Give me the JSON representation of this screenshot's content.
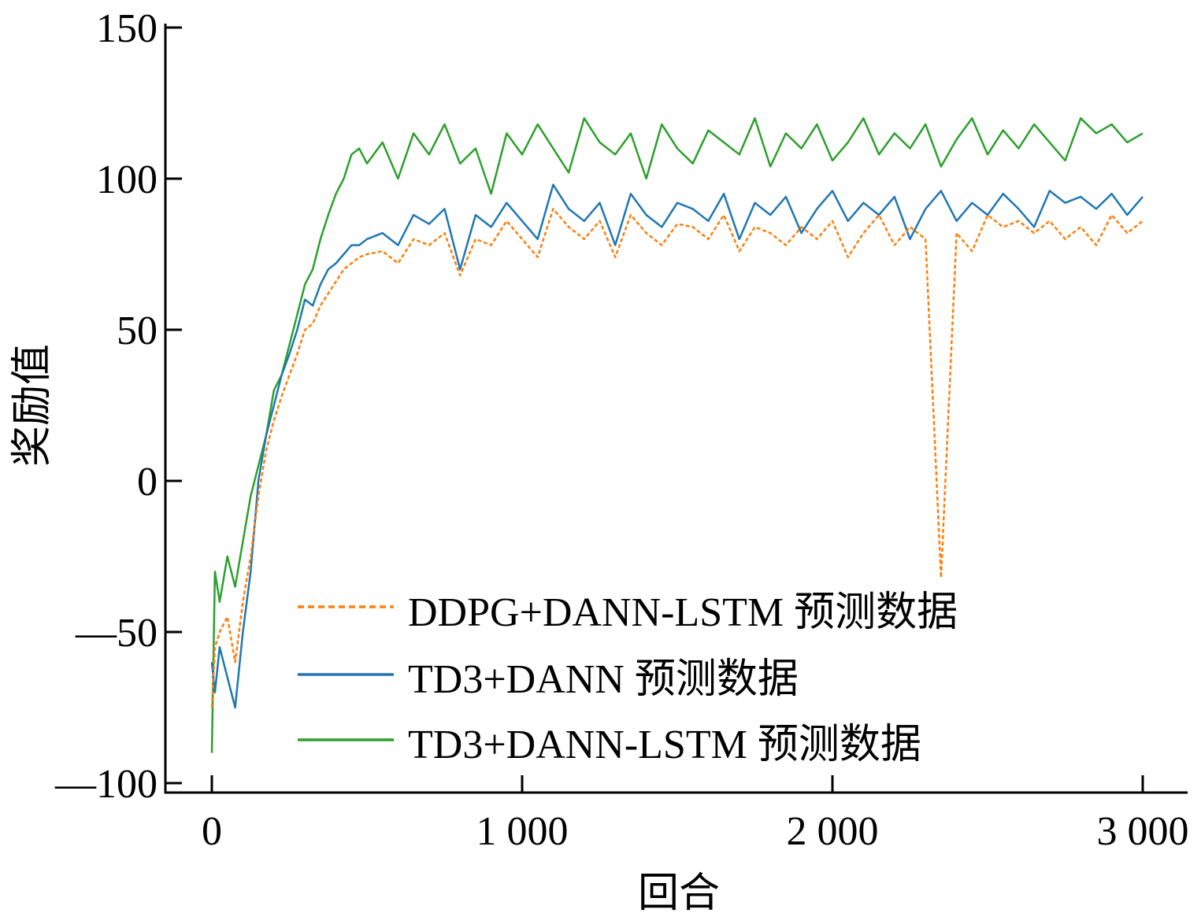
{
  "chart_data": {
    "type": "line",
    "title": "",
    "xlabel": "回合",
    "ylabel": "奖励值",
    "xlim": [
      -150,
      3150
    ],
    "ylim": [
      -100,
      150
    ],
    "xticks": [
      0,
      1000,
      2000,
      3000
    ],
    "xtick_labels": [
      "0",
      "1 000",
      "2 000",
      "3 000"
    ],
    "yticks": [
      -100,
      -50,
      0,
      50,
      100,
      150
    ],
    "ytick_labels": [
      "—100",
      "—50",
      "0",
      "50",
      "100",
      "150"
    ],
    "grid": false,
    "legend_position": "lower-center",
    "x": [
      0,
      10,
      25,
      50,
      75,
      100,
      125,
      150,
      175,
      200,
      225,
      250,
      275,
      300,
      325,
      350,
      375,
      400,
      425,
      450,
      475,
      500,
      550,
      600,
      650,
      700,
      750,
      800,
      850,
      900,
      950,
      1000,
      1050,
      1100,
      1150,
      1200,
      1250,
      1300,
      1350,
      1400,
      1450,
      1500,
      1550,
      1600,
      1650,
      1700,
      1750,
      1800,
      1850,
      1900,
      1950,
      2000,
      2050,
      2100,
      2150,
      2200,
      2250,
      2300,
      2350,
      2400,
      2450,
      2500,
      2550,
      2600,
      2650,
      2700,
      2750,
      2800,
      2850,
      2900,
      2950,
      3000
    ],
    "series": [
      {
        "name": "DDPG+DANN-LSTM 预测数据",
        "color": "#ff7f0e",
        "style": "dashed",
        "values": [
          -75,
          -55,
          -50,
          -45,
          -60,
          -40,
          -25,
          -5,
          10,
          20,
          28,
          35,
          42,
          50,
          52,
          58,
          62,
          66,
          70,
          72,
          74,
          75,
          76,
          72,
          80,
          78,
          82,
          68,
          80,
          78,
          86,
          80,
          74,
          90,
          84,
          80,
          86,
          74,
          88,
          82,
          78,
          85,
          84,
          80,
          88,
          76,
          84,
          82,
          78,
          84,
          80,
          86,
          74,
          82,
          88,
          78,
          84,
          80,
          -32,
          82,
          76,
          88,
          84,
          86,
          82,
          86,
          80,
          84,
          78,
          88,
          82,
          86
        ]
      },
      {
        "name": "TD3+DANN 预测数据",
        "color": "#1f77b4",
        "style": "solid",
        "values": [
          -60,
          -70,
          -55,
          -65,
          -75,
          -50,
          -30,
          0,
          15,
          25,
          35,
          42,
          50,
          60,
          58,
          65,
          70,
          72,
          75,
          78,
          78,
          80,
          82,
          78,
          88,
          85,
          90,
          70,
          88,
          84,
          92,
          86,
          80,
          98,
          90,
          86,
          92,
          78,
          95,
          88,
          84,
          92,
          90,
          86,
          95,
          80,
          92,
          88,
          94,
          82,
          90,
          96,
          86,
          92,
          88,
          94,
          80,
          90,
          96,
          86,
          92,
          88,
          95,
          90,
          84,
          96,
          92,
          94,
          90,
          95,
          88,
          94
        ]
      },
      {
        "name": "TD3+DANN-LSTM 预测数据",
        "color": "#2ca02c",
        "style": "solid",
        "values": [
          -90,
          -30,
          -40,
          -25,
          -35,
          -20,
          -5,
          5,
          15,
          30,
          35,
          45,
          55,
          65,
          70,
          80,
          88,
          95,
          100,
          108,
          110,
          105,
          112,
          100,
          115,
          108,
          118,
          105,
          110,
          95,
          115,
          108,
          118,
          110,
          102,
          120,
          112,
          108,
          115,
          100,
          118,
          110,
          105,
          116,
          112,
          108,
          120,
          104,
          115,
          110,
          118,
          106,
          112,
          120,
          108,
          115,
          110,
          118,
          104,
          113,
          120,
          108,
          116,
          110,
          118,
          112,
          106,
          120,
          115,
          118,
          112,
          115
        ]
      }
    ]
  }
}
